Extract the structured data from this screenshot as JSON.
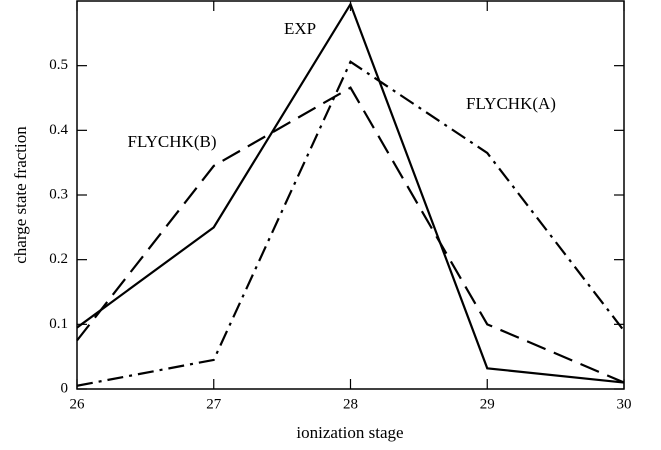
{
  "chart_data": {
    "type": "line",
    "x_label": "ionization stage",
    "y_label": "charge state fraction",
    "x": [
      26,
      27,
      28,
      29,
      30
    ],
    "series": [
      {
        "name": "EXP",
        "color": "#000000",
        "style": "solid",
        "values": [
          0.095,
          0.25,
          0.595,
          0.032,
          0.01
        ]
      },
      {
        "name": "FLYCHK(B)",
        "color": "#000000",
        "style": "dashed",
        "values": [
          0.075,
          0.345,
          0.466,
          0.1,
          0.01
        ]
      },
      {
        "name": "FLYCHK(A)",
        "color": "#000000",
        "style": "dashdot",
        "values": [
          0.005,
          0.045,
          0.506,
          0.365,
          0.09
        ]
      }
    ],
    "xlim": [
      26,
      30
    ],
    "ylim": [
      0,
      0.6
    ],
    "xticks": [
      26,
      27,
      28,
      29,
      30
    ],
    "yticks": [
      0,
      0.1,
      0.2,
      0.3,
      0.4,
      0.5
    ]
  }
}
